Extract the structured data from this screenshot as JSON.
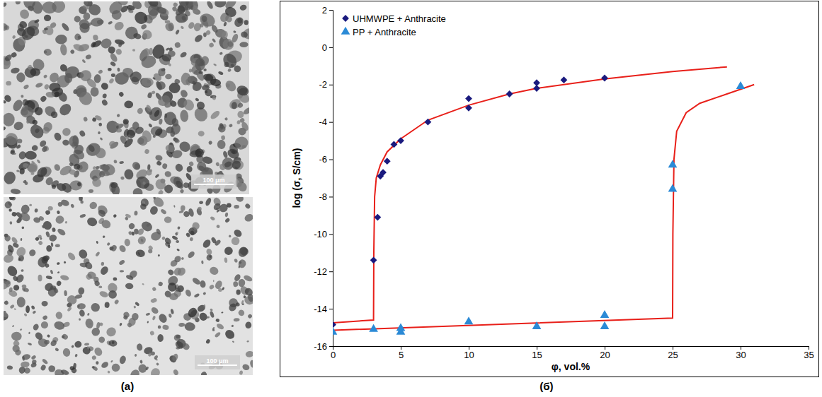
{
  "chart_data": {
    "type": "scatter",
    "x_label": "φ, vol.%",
    "y_label": "log (σ, S/cm)",
    "xlim": [
      0,
      35
    ],
    "ylim": [
      -16,
      2
    ],
    "xticks": [
      0,
      5,
      10,
      15,
      20,
      25,
      30,
      35
    ],
    "yticks": [
      -16,
      -14,
      -12,
      -10,
      -8,
      -6,
      -4,
      -2,
      0,
      2
    ],
    "grid": false,
    "legend": "upper left",
    "annotations": [
      {
        "text": "(б)"
      }
    ],
    "series": [
      {
        "name": "UHMWPE + Anthracite",
        "type": "scatter",
        "marker": "diamond",
        "color": "#1a1a7e",
        "x": [
          0,
          3,
          3.3,
          3.5,
          3.7,
          4,
          4.5,
          5,
          7,
          10,
          10,
          13,
          15,
          15,
          17,
          20
        ],
        "values": [
          -14.85,
          -11.4,
          -9.1,
          -6.9,
          -6.7,
          -6.1,
          -5.2,
          -5.0,
          -4.0,
          -2.75,
          -3.25,
          -2.5,
          -1.9,
          -2.2,
          -1.75,
          -1.65
        ]
      },
      {
        "name": "PP + Anthracite",
        "type": "scatter",
        "marker": "triangle",
        "color": "#2b8ad6",
        "x": [
          0,
          3,
          5,
          5,
          10,
          15,
          20,
          20,
          25,
          25,
          30
        ],
        "values": [
          -15.25,
          -15.1,
          -15.05,
          -15.25,
          -14.7,
          -14.95,
          -14.35,
          -14.95,
          -6.3,
          -7.6,
          -2.1
        ]
      },
      {
        "type": "line",
        "line_style": "solid",
        "color": "#e8201a",
        "x": [
          0,
          3,
          3.02,
          3.08,
          3.2,
          3.5,
          4,
          5,
          7,
          10,
          13,
          15,
          20,
          25,
          29
        ],
        "values": [
          -14.75,
          -14.6,
          -11,
          -8,
          -7,
          -6.3,
          -5.6,
          -4.9,
          -3.9,
          -3.1,
          -2.5,
          -2.2,
          -1.7,
          -1.3,
          -1.05
        ]
      },
      {
        "type": "line",
        "line_style": "solid",
        "color": "#e8201a",
        "x": [
          0,
          25,
          25.02,
          25.1,
          25.3,
          26,
          27,
          29,
          31
        ],
        "values": [
          -15.15,
          -14.5,
          -10,
          -6,
          -4.5,
          -3.5,
          -3.0,
          -2.5,
          -2.0
        ]
      }
    ]
  },
  "micrographs": {
    "label": "(a)",
    "images": [
      {
        "scale_bar": "100 μm"
      },
      {
        "scale_bar": "100 μm"
      }
    ]
  }
}
